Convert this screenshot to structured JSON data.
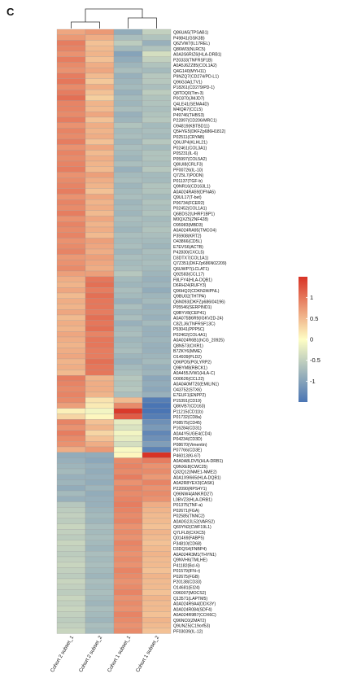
{
  "panel_label": "C",
  "chart_data": {
    "type": "heatmap",
    "columns": [
      "Cohort 2 subset_1",
      "Cohort 2 subset_2",
      "Cohort 1 subset_1",
      "Cohort 1 subset_2"
    ],
    "legend_ticks": [
      1,
      0.5,
      0,
      -0.5,
      -1
    ],
    "color_range": [
      -1.5,
      1.5
    ],
    "colors": {
      "low": "#4a75b4",
      "mid": "#fefec4",
      "high": "#d83326"
    },
    "rows": [
      {
        "label": "Q86UA5(TPSAB1)",
        "values": [
          0.65,
          0.75,
          -0.9,
          -0.5
        ]
      },
      {
        "label": "P49841(GSK3B)",
        "values": [
          0.75,
          0.6,
          -0.7,
          -0.65
        ]
      },
      {
        "label": "Q6ZVW7(IL17REL)",
        "values": [
          0.95,
          0.45,
          -0.55,
          -0.85
        ]
      },
      {
        "label": "Q86WI3(NLRC5)",
        "values": [
          0.9,
          0.5,
          -0.75,
          -0.65
        ]
      },
      {
        "label": "A0A3S6RIZ6(HLA-DRB1)",
        "values": [
          0.8,
          0.55,
          -1.0,
          -0.35
        ]
      },
      {
        "label": "P20333(TNFRSF1B)",
        "values": [
          0.95,
          0.45,
          -0.9,
          -0.5
        ]
      },
      {
        "label": "A0A5J6ZZ85(COL1A2)",
        "values": [
          0.85,
          0.6,
          -0.8,
          -0.65
        ]
      },
      {
        "label": "Q4G140(MYH11)",
        "values": [
          0.8,
          0.65,
          -0.7,
          -0.75
        ]
      },
      {
        "label": "P9NZQ7(CD274/PD-L1)",
        "values": [
          0.95,
          0.5,
          -0.85,
          -0.6
        ]
      },
      {
        "label": "Q96G3A(LTV1)",
        "values": [
          1.0,
          0.4,
          -0.8,
          -0.6
        ]
      },
      {
        "label": "P18261(CD279/PD-1)",
        "values": [
          0.85,
          0.6,
          -0.75,
          -0.7
        ]
      },
      {
        "label": "Q8TDQ0(Tim-3)",
        "values": [
          0.95,
          0.45,
          -0.85,
          -0.55
        ]
      },
      {
        "label": "P0C870(JMJD7)",
        "values": [
          1.05,
          0.35,
          -0.75,
          -0.65
        ]
      },
      {
        "label": "Q4LE41(SEMA4D)",
        "values": [
          0.9,
          0.55,
          -0.8,
          -0.65
        ]
      },
      {
        "label": "M4IQR7(CCL5)",
        "values": [
          0.9,
          0.5,
          -0.7,
          -0.7
        ]
      },
      {
        "label": "P49746(THBS3)",
        "values": [
          0.85,
          0.65,
          -0.85,
          -0.65
        ]
      },
      {
        "label": "P22897(CD206/MRC1)",
        "values": [
          0.95,
          0.45,
          -0.8,
          -0.6
        ]
      },
      {
        "label": "O94819(KBTBD11)",
        "values": [
          0.8,
          0.6,
          -0.65,
          -0.75
        ]
      },
      {
        "label": "Q5HYE5(DKFZp686H1812)",
        "values": [
          0.9,
          0.55,
          -0.75,
          -0.7
        ]
      },
      {
        "label": "P02511(CRYAB)",
        "values": [
          0.85,
          0.6,
          -0.7,
          -0.75
        ]
      },
      {
        "label": "Q9UJP4(KLHL21)",
        "values": [
          0.95,
          0.45,
          -0.8,
          -0.6
        ]
      },
      {
        "label": "P02461(COL3A1)",
        "values": [
          0.8,
          0.65,
          -0.7,
          -0.75
        ]
      },
      {
        "label": "P05231(IL-6)",
        "values": [
          0.9,
          0.5,
          -0.75,
          -0.65
        ]
      },
      {
        "label": "P05997(COL5A2)",
        "values": [
          0.85,
          0.6,
          -0.8,
          -0.65
        ]
      },
      {
        "label": "Q8IUI8(CRLF3)",
        "values": [
          0.9,
          0.55,
          -0.7,
          -0.7
        ]
      },
      {
        "label": "PF00726(IL-10)",
        "values": [
          0.95,
          0.5,
          -0.85,
          -0.6
        ]
      },
      {
        "label": "Q7Z5L7(PODN)",
        "values": [
          0.8,
          0.7,
          -0.75,
          -0.75
        ]
      },
      {
        "label": "P01137(TGF-b)",
        "values": [
          0.85,
          0.6,
          -0.7,
          -0.75
        ]
      },
      {
        "label": "Q9NR16(CD163L1)",
        "values": [
          0.9,
          0.55,
          -0.8,
          -0.65
        ]
      },
      {
        "label": "A0A024RA59(DFNA5)",
        "values": [
          0.95,
          0.45,
          -0.75,
          -0.65
        ]
      },
      {
        "label": "Q9UL17(T-bet)",
        "values": [
          0.8,
          0.65,
          -0.7,
          -0.75
        ]
      },
      {
        "label": "P06734(FCER2)",
        "values": [
          0.9,
          0.55,
          -0.8,
          -0.65
        ]
      },
      {
        "label": "P02452(COL1A1)",
        "values": [
          0.85,
          0.6,
          -0.75,
          -0.7
        ]
      },
      {
        "label": "Q6BDS2(UHRF1BP1)",
        "values": [
          0.95,
          0.5,
          -0.8,
          -0.65
        ]
      },
      {
        "label": "M0QXZ5(ZNF428)",
        "values": [
          0.8,
          0.65,
          -0.7,
          -0.75
        ]
      },
      {
        "label": "O95983(MBD3)",
        "values": [
          0.9,
          0.55,
          -0.75,
          -0.7
        ]
      },
      {
        "label": "A0A024RA95(TMCO4)",
        "values": [
          0.85,
          0.6,
          -0.8,
          -0.65
        ]
      },
      {
        "label": "P35908(KRT2)",
        "values": [
          0.9,
          0.5,
          -0.7,
          -0.7
        ]
      },
      {
        "label": "O43866(CD5L)",
        "values": [
          0.8,
          0.7,
          -0.75,
          -0.75
        ]
      },
      {
        "label": "E7EVS6(ACTB)",
        "values": [
          0.85,
          0.65,
          -0.7,
          -0.8
        ]
      },
      {
        "label": "P42830(CXCL5)",
        "values": [
          0.9,
          0.6,
          -0.8,
          -0.7
        ]
      },
      {
        "label": "D3DTX7(COL1A1)",
        "values": [
          0.75,
          0.7,
          -0.7,
          -0.75
        ]
      },
      {
        "label": "Q7Z351(DKFZp686N02209)",
        "values": [
          0.8,
          0.65,
          -0.75,
          -0.7
        ]
      },
      {
        "label": "Q6UWP7(LCLAT1)",
        "values": [
          0.85,
          0.6,
          -0.7,
          -0.75
        ]
      },
      {
        "label": "Q92583(CCL17)",
        "values": [
          0.7,
          0.7,
          -0.6,
          -0.8
        ]
      },
      {
        "label": "F8LFY4(HLA-DQB1)",
        "values": [
          0.6,
          1.0,
          -0.75,
          -0.85
        ]
      },
      {
        "label": "D6RH24(RUFY3)",
        "values": [
          0.55,
          1.05,
          -0.8,
          -0.8
        ]
      },
      {
        "label": "Q96HQ2(CDKN2AIPNL)",
        "values": [
          0.65,
          0.95,
          -0.7,
          -0.9
        ]
      },
      {
        "label": "Q9BU02(THTPA)",
        "values": [
          0.5,
          1.05,
          -0.75,
          -0.8
        ]
      },
      {
        "label": "Q6N093(DKFZp686I04196)",
        "values": [
          0.6,
          1.0,
          -0.85,
          -0.75
        ]
      },
      {
        "label": "P05546(SERPIND1)",
        "values": [
          0.55,
          1.0,
          -0.7,
          -0.85
        ]
      },
      {
        "label": "Q9BYV8(CEP41)",
        "values": [
          0.65,
          0.95,
          -0.8,
          -0.8
        ]
      },
      {
        "label": "A0A075B6R9(IGKV2D-24)",
        "values": [
          0.5,
          1.05,
          -0.7,
          -0.85
        ]
      },
      {
        "label": "C8ZLJ6(TNFRSF13C)",
        "values": [
          0.6,
          1.0,
          -0.85,
          -0.75
        ]
      },
      {
        "label": "P53041(PPP5C)",
        "values": [
          0.55,
          1.05,
          -0.75,
          -0.85
        ]
      },
      {
        "label": "P02462(COL4A1)",
        "values": [
          0.65,
          0.9,
          -0.7,
          -0.85
        ]
      },
      {
        "label": "A0A024R6B1(hCG_20925)",
        "values": [
          0.6,
          1.0,
          -0.8,
          -0.8
        ]
      },
      {
        "label": "Q8N573(OXR1)",
        "values": [
          0.55,
          1.0,
          -0.75,
          -0.85
        ]
      },
      {
        "label": "B7ZKY6(MME)",
        "values": [
          0.6,
          0.95,
          -0.7,
          -0.85
        ]
      },
      {
        "label": "O14939(PLD2)",
        "values": [
          0.65,
          0.95,
          -0.8,
          -0.8
        ]
      },
      {
        "label": "Q96PD5(PGLYRP2)",
        "values": [
          0.55,
          1.05,
          -0.85,
          -0.75
        ]
      },
      {
        "label": "Q9BYM8(RBCK1)",
        "values": [
          0.6,
          1.0,
          -0.75,
          -0.85
        ]
      },
      {
        "label": "A0A455JVW1(HLA-C)",
        "values": [
          0.5,
          1.0,
          -0.7,
          -0.8
        ]
      },
      {
        "label": "O00626(CCL22)",
        "values": [
          0.95,
          0.55,
          -0.6,
          -0.95
        ]
      },
      {
        "label": "A0A0A0MT20(EMILIN1)",
        "values": [
          0.9,
          0.6,
          -0.65,
          -0.9
        ]
      },
      {
        "label": "O43752(STX6)",
        "values": [
          0.85,
          0.6,
          -0.6,
          -0.95
        ]
      },
      {
        "label": "E7EUF1(ENPP2)",
        "values": [
          0.9,
          0.55,
          -0.7,
          -0.85
        ]
      },
      {
        "label": "P15391(CD19)",
        "values": [
          0.85,
          0.2,
          0.5,
          -1.4
        ]
      },
      {
        "label": "Q86VB7(CD163)",
        "values": [
          0.7,
          0.15,
          0.85,
          -1.5
        ]
      },
      {
        "label": "P11215(CD11b)",
        "values": [
          0.1,
          -0.1,
          1.45,
          -1.5
        ]
      },
      {
        "label": "P01732(CD8a)",
        "values": [
          0.3,
          0.05,
          1.2,
          -1.4
        ]
      },
      {
        "label": "P08575(CD45)",
        "values": [
          0.9,
          0.45,
          -0.2,
          -1.2
        ]
      },
      {
        "label": "P16284(CD31)",
        "values": [
          0.8,
          0.55,
          -0.3,
          -1.1
        ]
      },
      {
        "label": "A0A4Y5UGE4(CD4)",
        "values": [
          0.95,
          0.3,
          -0.1,
          -1.3
        ]
      },
      {
        "label": "P04234(CD3D)",
        "values": [
          0.85,
          0.45,
          -0.2,
          -1.2
        ]
      },
      {
        "label": "P08670(Vimentin)",
        "values": [
          0.8,
          0.6,
          -0.35,
          -1.05
        ]
      },
      {
        "label": "P07766(CD3E)",
        "values": [
          0.6,
          0.75,
          -0.05,
          -1.35
        ]
      },
      {
        "label": "P46013(Ki-67)",
        "values": [
          -0.9,
          -0.9,
          0.05,
          1.65
        ]
      },
      {
        "label": "A0A0A8LDV5(HLA-DRB1)",
        "values": [
          -0.85,
          -0.95,
          0.85,
          0.95
        ]
      },
      {
        "label": "Q9NXE8(CWC25)",
        "values": [
          -0.8,
          -0.85,
          0.9,
          0.8
        ]
      },
      {
        "label": "Q32Q12(NME1-NME2)",
        "values": [
          -0.75,
          -0.9,
          0.85,
          0.85
        ]
      },
      {
        "label": "A0A1X9I665(HLA-DQB1)",
        "values": [
          -0.85,
          -0.85,
          0.95,
          0.75
        ]
      },
      {
        "label": "A0A2R8YEX3(CASK)",
        "values": [
          -0.8,
          -0.9,
          0.8,
          0.9
        ]
      },
      {
        "label": "P22090(RPS4Y1)",
        "values": [
          -0.9,
          -0.8,
          0.9,
          0.8
        ]
      },
      {
        "label": "Q96NW4(ANKRD27)",
        "values": [
          -0.75,
          -0.9,
          0.85,
          0.85
        ]
      },
      {
        "label": "L0BVZ3(HLA-DRB1)",
        "values": [
          -0.85,
          -0.85,
          0.9,
          0.8
        ]
      },
      {
        "label": "P01375(TNF-a)",
        "values": [
          -0.6,
          -0.85,
          0.95,
          0.6
        ]
      },
      {
        "label": "P02671(FGA)",
        "values": [
          -0.55,
          -0.8,
          0.9,
          0.55
        ]
      },
      {
        "label": "P02585(TNNC2)",
        "values": [
          -0.5,
          -0.75,
          0.85,
          0.5
        ]
      },
      {
        "label": "A0A0G2JL52(VARS2)",
        "values": [
          -0.55,
          -0.8,
          0.9,
          0.5
        ]
      },
      {
        "label": "Q69YN2(CWF19L1)",
        "values": [
          -0.45,
          -0.7,
          0.8,
          0.45
        ]
      },
      {
        "label": "Q7LFL8(CXXC5)",
        "values": [
          -0.5,
          -0.75,
          0.85,
          0.55
        ]
      },
      {
        "label": "Q01469(FABP5)",
        "values": [
          -0.55,
          -0.7,
          0.8,
          0.5
        ]
      },
      {
        "label": "P34810(CD68)",
        "values": [
          -0.45,
          -0.75,
          0.9,
          0.45
        ]
      },
      {
        "label": "D3DQS4(FNBP4)",
        "values": [
          -0.5,
          -0.8,
          0.85,
          0.5
        ]
      },
      {
        "label": "A0A024R3M1(THYN1)",
        "values": [
          -0.55,
          -0.7,
          0.8,
          0.55
        ]
      },
      {
        "label": "Q9NVH6(TMLHE)",
        "values": [
          -0.5,
          -0.75,
          0.85,
          0.5
        ]
      },
      {
        "label": "P41182(Bcl-6)",
        "values": [
          -0.45,
          -0.7,
          0.8,
          0.5
        ]
      },
      {
        "label": "P01579(IFN-r)",
        "values": [
          -0.5,
          -0.75,
          0.9,
          0.45
        ]
      },
      {
        "label": "P02675(FGB)",
        "values": [
          -0.55,
          -0.8,
          0.85,
          0.55
        ]
      },
      {
        "label": "P20138(CD33)",
        "values": [
          -0.45,
          -0.7,
          0.8,
          0.5
        ]
      },
      {
        "label": "O14681(EI24)",
        "values": [
          -0.5,
          -0.75,
          0.85,
          0.5
        ]
      },
      {
        "label": "O96007(MOCS2)",
        "values": [
          -0.55,
          -0.7,
          0.9,
          0.45
        ]
      },
      {
        "label": "Q13571(LAPTM5)",
        "values": [
          -0.45,
          -0.75,
          0.8,
          0.55
        ]
      },
      {
        "label": "A0A024R9A4(DDX3Y)",
        "values": [
          -0.5,
          -0.8,
          0.85,
          0.5
        ]
      },
      {
        "label": "A0A024R084(SDF4)",
        "values": [
          -0.45,
          -0.7,
          0.8,
          0.5
        ]
      },
      {
        "label": "A0A024R9B7(COX6C)",
        "values": [
          -0.5,
          -0.75,
          0.9,
          0.45
        ]
      },
      {
        "label": "Q96NC0(ZMAT2)",
        "values": [
          -0.55,
          -0.8,
          0.85,
          0.55
        ]
      },
      {
        "label": "Q9UNZ5(C19orf53)",
        "values": [
          -0.5,
          -0.7,
          0.8,
          0.5
        ]
      },
      {
        "label": "PF03039(IL-12)",
        "values": [
          -0.45,
          -0.75,
          0.85,
          0.45
        ]
      }
    ]
  }
}
